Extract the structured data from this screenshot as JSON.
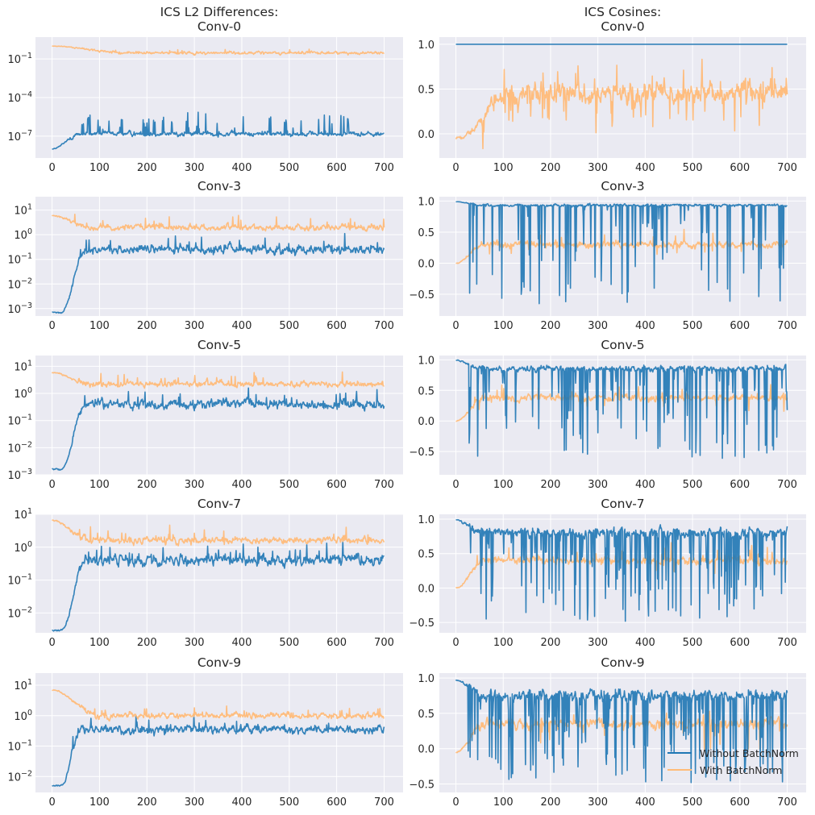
{
  "figure": {
    "left_column_title": "ICS L2 Differences:",
    "right_column_title": "ICS Cosines:",
    "layer_names": [
      "Conv-0",
      "Conv-3",
      "Conv-5",
      "Conv-7",
      "Conv-9"
    ],
    "background_color": "#eaeaf2",
    "grid_color": "#ffffff"
  },
  "legend": {
    "placement": "lower-right",
    "items": [
      {
        "label": "Without BatchNorm",
        "color": "#1f77b4"
      },
      {
        "label": "With BatchNorm",
        "color": "#ffbb78"
      }
    ]
  },
  "chart_data": [
    {
      "type": "line",
      "title": "Conv-0",
      "yscale": "log",
      "xlim": [
        -35,
        740
      ],
      "ylim": [
        2e-09,
        5
      ],
      "xticks": [
        0,
        100,
        200,
        300,
        400,
        500,
        600,
        700
      ],
      "yticks_exp": [
        -7,
        -4,
        -1
      ],
      "series": [
        {
          "name": "Without BatchNorm",
          "color": "#1f77b4",
          "profile": {
            "start": 1e-08,
            "plateau": 1.5e-07,
            "rise_from": 0,
            "rise_to": 60,
            "noise": 0.25,
            "spike_prob": 0.09,
            "spike_max": 1.6,
            "dip_prob": 0,
            "dip_max": 0
          }
        },
        {
          "name": "With BatchNorm",
          "color": "#ffbb78",
          "profile": {
            "start": 1.0,
            "plateau": 0.3,
            "rise_from": 0,
            "rise_to": 150,
            "noise": 0.16,
            "spike_prob": 0.03,
            "spike_max": 0.3,
            "dip_prob": 0,
            "dip_max": 0
          }
        }
      ]
    },
    {
      "type": "line",
      "title": "Conv-0",
      "yscale": "linear",
      "xlim": [
        -35,
        740
      ],
      "ylim": [
        -0.27,
        1.08
      ],
      "xticks": [
        0,
        100,
        200,
        300,
        400,
        500,
        600,
        700
      ],
      "yticks": [
        0.0,
        0.5,
        1.0
      ],
      "series": [
        {
          "name": "Without BatchNorm",
          "color": "#1f77b4",
          "profile": {
            "start": 1.0,
            "plateau": 1.0,
            "rise_from": 0,
            "rise_to": 1,
            "noise": 0,
            "spike_prob": 0,
            "spike_max": 0,
            "dip_prob": 0,
            "dip_max": 0
          }
        },
        {
          "name": "With BatchNorm",
          "color": "#ffbb78",
          "profile": {
            "start": -0.05,
            "plateau": 0.45,
            "rise_from": 0,
            "rise_to": 120,
            "noise": 0.17,
            "spike_prob": 0.06,
            "spike_max": 0.28,
            "dip_prob": 0.06,
            "dip_max": 0.4
          }
        }
      ]
    },
    {
      "type": "line",
      "title": "Conv-3",
      "yscale": "log",
      "xlim": [
        -35,
        740
      ],
      "ylim": [
        0.0005,
        35
      ],
      "xticks": [
        0,
        100,
        200,
        300,
        400,
        500,
        600,
        700
      ],
      "yticks_exp": [
        -3,
        -2,
        -1,
        0,
        1
      ],
      "series": [
        {
          "name": "Without BatchNorm",
          "color": "#1f77b4",
          "profile": {
            "start": 0.0007,
            "plateau": 0.25,
            "rise_from": 20,
            "rise_to": 70,
            "noise": 0.25,
            "spike_prob": 0.05,
            "spike_max": 0.5,
            "dip_prob": 0,
            "dip_max": 0
          }
        },
        {
          "name": "With BatchNorm",
          "color": "#ffbb78",
          "profile": {
            "start": 6.0,
            "plateau": 2.0,
            "rise_from": 0,
            "rise_to": 80,
            "noise": 0.17,
            "spike_prob": 0.04,
            "spike_max": 0.5,
            "dip_prob": 0,
            "dip_max": 0
          }
        }
      ]
    },
    {
      "type": "line",
      "title": "Conv-3",
      "yscale": "linear",
      "xlim": [
        -35,
        740
      ],
      "ylim": [
        -0.85,
        1.07
      ],
      "xticks": [
        0,
        100,
        200,
        300,
        400,
        500,
        600,
        700
      ],
      "yticks": [
        -0.5,
        0.0,
        0.5,
        1.0
      ],
      "series": [
        {
          "name": "Without BatchNorm",
          "color": "#1f77b4",
          "profile": {
            "start": 0.99,
            "plateau": 0.93,
            "rise_from": 0,
            "rise_to": 60,
            "noise": 0.03,
            "spike_prob": 0,
            "spike_max": 0,
            "dip_prob": 0.12,
            "dip_max": 1.6
          }
        },
        {
          "name": "With BatchNorm",
          "color": "#ffbb78",
          "profile": {
            "start": 0.0,
            "plateau": 0.3,
            "rise_from": 0,
            "rise_to": 60,
            "noise": 0.08,
            "spike_prob": 0.03,
            "spike_max": 0.2,
            "dip_prob": 0.02,
            "dip_max": 0.2
          }
        }
      ]
    },
    {
      "type": "line",
      "title": "Conv-5",
      "yscale": "log",
      "xlim": [
        -35,
        740
      ],
      "ylim": [
        0.001,
        25
      ],
      "xticks": [
        0,
        100,
        200,
        300,
        400,
        500,
        600,
        700
      ],
      "yticks_exp": [
        -3,
        -2,
        -1,
        0,
        1
      ],
      "series": [
        {
          "name": "Without BatchNorm",
          "color": "#1f77b4",
          "profile": {
            "start": 0.0016,
            "plateau": 0.4,
            "rise_from": 20,
            "rise_to": 70,
            "noise": 0.25,
            "spike_prob": 0.05,
            "spike_max": 0.5,
            "dip_prob": 0,
            "dip_max": 0
          }
        },
        {
          "name": "With BatchNorm",
          "color": "#ffbb78",
          "profile": {
            "start": 6.0,
            "plateau": 2.2,
            "rise_from": 0,
            "rise_to": 80,
            "noise": 0.15,
            "spike_prob": 0.04,
            "spike_max": 0.4,
            "dip_prob": 0,
            "dip_max": 0
          }
        }
      ]
    },
    {
      "type": "line",
      "title": "Conv-5",
      "yscale": "linear",
      "xlim": [
        -35,
        740
      ],
      "ylim": [
        -0.88,
        1.07
      ],
      "xticks": [
        0,
        100,
        200,
        300,
        400,
        500,
        600,
        700
      ],
      "yticks": [
        -0.5,
        0.0,
        0.5,
        1.0
      ],
      "series": [
        {
          "name": "Without BatchNorm",
          "color": "#1f77b4",
          "profile": {
            "start": 0.99,
            "plateau": 0.85,
            "rise_from": 0,
            "rise_to": 60,
            "noise": 0.07,
            "spike_prob": 0,
            "spike_max": 0,
            "dip_prob": 0.18,
            "dip_max": 1.5
          }
        },
        {
          "name": "With BatchNorm",
          "color": "#ffbb78",
          "profile": {
            "start": 0.0,
            "plateau": 0.38,
            "rise_from": 0,
            "rise_to": 60,
            "noise": 0.08,
            "spike_prob": 0.03,
            "spike_max": 0.2,
            "dip_prob": 0.02,
            "dip_max": 0.25
          }
        }
      ]
    },
    {
      "type": "line",
      "title": "Conv-7",
      "yscale": "log",
      "xlim": [
        -35,
        740
      ],
      "ylim": [
        0.0025,
        10
      ],
      "xticks": [
        0,
        100,
        200,
        300,
        400,
        500,
        600,
        700
      ],
      "yticks_exp": [
        -2,
        -1,
        0,
        1
      ],
      "series": [
        {
          "name": "Without BatchNorm",
          "color": "#1f77b4",
          "profile": {
            "start": 0.003,
            "plateau": 0.4,
            "rise_from": 20,
            "rise_to": 70,
            "noise": 0.25,
            "spike_prob": 0.05,
            "spike_max": 0.5,
            "dip_prob": 0,
            "dip_max": 0
          }
        },
        {
          "name": "With BatchNorm",
          "color": "#ffbb78",
          "profile": {
            "start": 6.5,
            "plateau": 1.6,
            "rise_from": 0,
            "rise_to": 80,
            "noise": 0.15,
            "spike_prob": 0.04,
            "spike_max": 0.4,
            "dip_prob": 0,
            "dip_max": 0
          }
        }
      ]
    },
    {
      "type": "line",
      "title": "Conv-7",
      "yscale": "linear",
      "xlim": [
        -35,
        740
      ],
      "ylim": [
        -0.65,
        1.07
      ],
      "xticks": [
        0,
        100,
        200,
        300,
        400,
        500,
        600,
        700
      ],
      "yticks": [
        -0.5,
        0.0,
        0.5,
        1.0
      ],
      "series": [
        {
          "name": "Without BatchNorm",
          "color": "#1f77b4",
          "profile": {
            "start": 0.99,
            "plateau": 0.8,
            "rise_from": 0,
            "rise_to": 60,
            "noise": 0.1,
            "spike_prob": 0,
            "spike_max": 0,
            "dip_prob": 0.2,
            "dip_max": 1.3
          }
        },
        {
          "name": "With BatchNorm",
          "color": "#ffbb78",
          "profile": {
            "start": 0.0,
            "plateau": 0.4,
            "rise_from": 0,
            "rise_to": 60,
            "noise": 0.08,
            "spike_prob": 0.03,
            "spike_max": 0.2,
            "dip_prob": 0.02,
            "dip_max": 0.25
          }
        }
      ]
    },
    {
      "type": "line",
      "title": "Conv-9",
      "yscale": "log",
      "xlim": [
        -35,
        740
      ],
      "ylim": [
        0.003,
        25
      ],
      "xticks": [
        0,
        100,
        200,
        300,
        400,
        500,
        600,
        700
      ],
      "yticks_exp": [
        -2,
        -1,
        0,
        1
      ],
      "series": [
        {
          "name": "Without BatchNorm",
          "color": "#1f77b4",
          "profile": {
            "start": 0.005,
            "plateau": 0.35,
            "rise_from": 20,
            "rise_to": 60,
            "noise": 0.2,
            "spike_prob": 0.05,
            "spike_max": 0.4,
            "dip_prob": 0,
            "dip_max": 0
          }
        },
        {
          "name": "With BatchNorm",
          "color": "#ffbb78",
          "profile": {
            "start": 7.0,
            "plateau": 1.0,
            "rise_from": 0,
            "rise_to": 100,
            "noise": 0.14,
            "spike_prob": 0.04,
            "spike_max": 0.3,
            "dip_prob": 0,
            "dip_max": 0
          }
        }
      ]
    },
    {
      "type": "line",
      "title": "Conv-9",
      "yscale": "linear",
      "xlim": [
        -35,
        740
      ],
      "ylim": [
        -0.62,
        1.07
      ],
      "xticks": [
        0,
        100,
        200,
        300,
        400,
        500,
        600,
        700
      ],
      "yticks": [
        -0.5,
        0.0,
        0.5,
        1.0
      ],
      "series": [
        {
          "name": "Without BatchNorm",
          "color": "#1f77b4",
          "profile": {
            "start": 0.97,
            "plateau": 0.75,
            "rise_from": 0,
            "rise_to": 60,
            "noise": 0.12,
            "spike_prob": 0,
            "spike_max": 0,
            "dip_prob": 0.2,
            "dip_max": 1.2
          }
        },
        {
          "name": "With BatchNorm",
          "color": "#ffbb78",
          "profile": {
            "start": -0.05,
            "plateau": 0.35,
            "rise_from": 0,
            "rise_to": 60,
            "noise": 0.1,
            "spike_prob": 0.03,
            "spike_max": 0.2,
            "dip_prob": 0.03,
            "dip_max": 0.4
          }
        }
      ]
    }
  ]
}
